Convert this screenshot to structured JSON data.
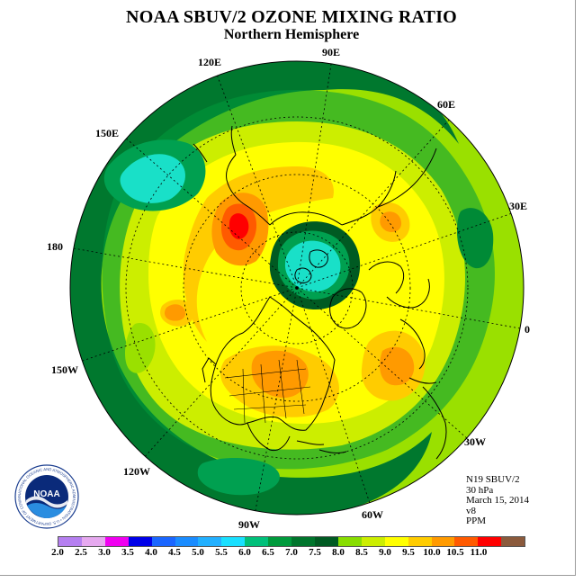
{
  "header": {
    "title": "NOAA SBUV/2 OZONE MIXING RATIO",
    "subtitle": "Northern Hemisphere"
  },
  "map": {
    "projection": "polar stereographic, north pole",
    "longitude_labels": [
      "90E",
      "60E",
      "30E",
      "0",
      "30W",
      "60W",
      "90W",
      "120W",
      "150W",
      "180",
      "150E",
      "120E"
    ],
    "field_levels_ppm": {
      "pole_vortex_min": 5.5,
      "vortex_ring": 6.5,
      "pacific_max": 10.0,
      "equatorial_band": 6.5
    }
  },
  "info": {
    "satellite": "N19 SBUV/2",
    "level": "30 hPa",
    "date": "March 15, 2014",
    "version": "v8",
    "units": "PPM"
  },
  "logo": {
    "text": "NOAA",
    "ring_text": "NATIONAL OCEANIC AND ATMOSPHERIC ADMINISTRATION • U.S. DEPARTMENT OF COMMERCE"
  },
  "colorbar": {
    "colors": [
      "#b57ff0",
      "#e6a9ef",
      "#f000f0",
      "#0000e8",
      "#1a66ff",
      "#1a8cff",
      "#22b0ff",
      "#19e0ff",
      "#00c07a",
      "#009a3c",
      "#00752c",
      "#005a22",
      "#88dd00",
      "#ccee00",
      "#ffff00",
      "#ffcc00",
      "#ff9a00",
      "#ff5a00",
      "#ff0000",
      "#8b5a3c"
    ],
    "ticks": [
      "2.0",
      "2.5",
      "3.0",
      "3.5",
      "4.0",
      "4.5",
      "5.0",
      "5.5",
      "6.0",
      "6.5",
      "7.0",
      "7.5",
      "8.0",
      "8.5",
      "9.0",
      "9.5",
      "10.0",
      "10.5",
      "11.0"
    ]
  }
}
